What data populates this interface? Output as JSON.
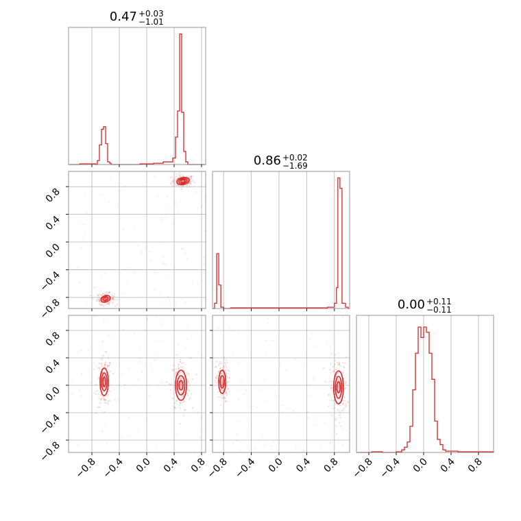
{
  "chart_data": {
    "type": "corner",
    "color": "#d62728",
    "grid": true,
    "parameters": 3,
    "titles": [
      {
        "value": "0.47",
        "upper": "+0.03",
        "lower": "−1.01"
      },
      {
        "value": "0.86",
        "upper": "+0.02",
        "lower": "−1.69"
      },
      {
        "value": "0.00",
        "upper": "+0.11",
        "lower": "−0.11"
      }
    ],
    "xticks": [
      -0.8,
      -0.4,
      0.0,
      0.4,
      0.8
    ],
    "xtick_labels": [
      "−0.8",
      "−0.4",
      "0.0",
      "0.4",
      "0.8"
    ],
    "yticks": [
      -0.8,
      -0.4,
      0.0,
      0.4,
      0.8
    ],
    "ytick_labels": [
      "−0.8",
      "−0.4",
      "0.0",
      "0.4",
      "0.8"
    ],
    "x_range": [
      -1.14,
      0.86
    ],
    "y_range": [
      -0.96,
      1.02
    ],
    "hist_1d": [
      {
        "param": 0,
        "range": [
          -1.14,
          0.86
        ],
        "bins": [
          [
            -1.14,
            0.0
          ],
          [
            -0.98,
            0.005
          ],
          [
            -0.74,
            0.0
          ],
          [
            -0.72,
            0.03
          ],
          [
            -0.69,
            0.15
          ],
          [
            -0.66,
            0.27
          ],
          [
            -0.63,
            0.29
          ],
          [
            -0.6,
            0.16
          ],
          [
            -0.57,
            0.02
          ],
          [
            -0.54,
            0.01
          ],
          [
            -0.52,
            0.0
          ],
          [
            -0.2,
            0.0
          ],
          [
            -0.1,
            0.005
          ],
          [
            0.1,
            0.01
          ],
          [
            0.24,
            0.02
          ],
          [
            0.38,
            0.05
          ],
          [
            0.42,
            0.21
          ],
          [
            0.45,
            0.41
          ],
          [
            0.48,
            1.0
          ],
          [
            0.51,
            0.4
          ],
          [
            0.54,
            0.1
          ],
          [
            0.57,
            0.02
          ],
          [
            0.6,
            0.0
          ]
        ],
        "ymax": 1.0
      },
      {
        "param": 1,
        "range": [
          -0.96,
          1.02
        ],
        "bins": [
          [
            -0.96,
            0.0
          ],
          [
            -0.93,
            0.04
          ],
          [
            -0.9,
            0.42
          ],
          [
            -0.87,
            0.18
          ],
          [
            -0.84,
            0.01
          ],
          [
            -0.8,
            0.0
          ],
          [
            -0.7,
            0.005
          ],
          [
            -0.6,
            0.005
          ],
          [
            -0.4,
            0.005
          ],
          [
            0.0,
            0.005
          ],
          [
            0.4,
            0.005
          ],
          [
            0.7,
            0.01
          ],
          [
            0.8,
            0.04
          ],
          [
            0.83,
            0.16
          ],
          [
            0.85,
            1.0
          ],
          [
            0.88,
            0.92
          ],
          [
            0.91,
            0.04
          ],
          [
            0.96,
            0.01
          ],
          [
            1.0,
            0.0
          ]
        ],
        "ymax": 1.0
      },
      {
        "param": 2,
        "range": [
          -0.98,
          1.02
        ],
        "bins": [
          [
            -0.98,
            0.0
          ],
          [
            -0.76,
            0.005
          ],
          [
            -0.6,
            0.0
          ],
          [
            -0.4,
            0.005
          ],
          [
            -0.32,
            0.02
          ],
          [
            -0.28,
            0.04
          ],
          [
            -0.24,
            0.08
          ],
          [
            -0.2,
            0.2
          ],
          [
            -0.16,
            0.48
          ],
          [
            -0.12,
            0.76
          ],
          [
            -0.08,
            0.96
          ],
          [
            -0.04,
            0.88
          ],
          [
            0.0,
            0.96
          ],
          [
            0.04,
            0.92
          ],
          [
            0.08,
            0.76
          ],
          [
            0.12,
            0.56
          ],
          [
            0.16,
            0.24
          ],
          [
            0.2,
            0.1
          ],
          [
            0.24,
            0.06
          ],
          [
            0.28,
            0.02
          ],
          [
            0.32,
            0.01
          ],
          [
            0.5,
            0.005
          ],
          [
            0.7,
            0.005
          ],
          [
            1.02,
            0.0
          ]
        ],
        "ymax": 1.0
      }
    ],
    "contours_2d": [
      {
        "x_param": 0,
        "y_param": 1,
        "modes": [
          {
            "cx": 0.53,
            "cy": 0.88,
            "rx": [
              0.09,
              0.06,
              0.035
            ],
            "ry": [
              0.05,
              0.035,
              0.02
            ],
            "angle": -12
          },
          {
            "cx": -0.6,
            "cy": -0.82,
            "rx": [
              0.07,
              0.04
            ],
            "ry": [
              0.045,
              0.025
            ],
            "angle": -20
          }
        ]
      },
      {
        "x_param": 0,
        "y_param": 2,
        "modes": [
          {
            "cx": -0.62,
            "cy": 0.05,
            "rx": [
              0.06,
              0.04,
              0.02
            ],
            "ry": [
              0.2,
              0.13,
              0.07
            ],
            "angle": 0
          },
          {
            "cx": 0.5,
            "cy": 0.0,
            "rx": [
              0.08,
              0.055,
              0.03
            ],
            "ry": [
              0.22,
              0.14,
              0.07
            ],
            "angle": 0
          }
        ]
      },
      {
        "x_param": 1,
        "y_param": 2,
        "modes": [
          {
            "cx": -0.82,
            "cy": 0.05,
            "rx": [
              0.05,
              0.03
            ],
            "ry": [
              0.17,
              0.09
            ],
            "angle": 0
          },
          {
            "cx": 0.86,
            "cy": -0.03,
            "rx": [
              0.07,
              0.045,
              0.025
            ],
            "ry": [
              0.24,
              0.16,
              0.08
            ],
            "angle": 0
          }
        ]
      }
    ]
  }
}
